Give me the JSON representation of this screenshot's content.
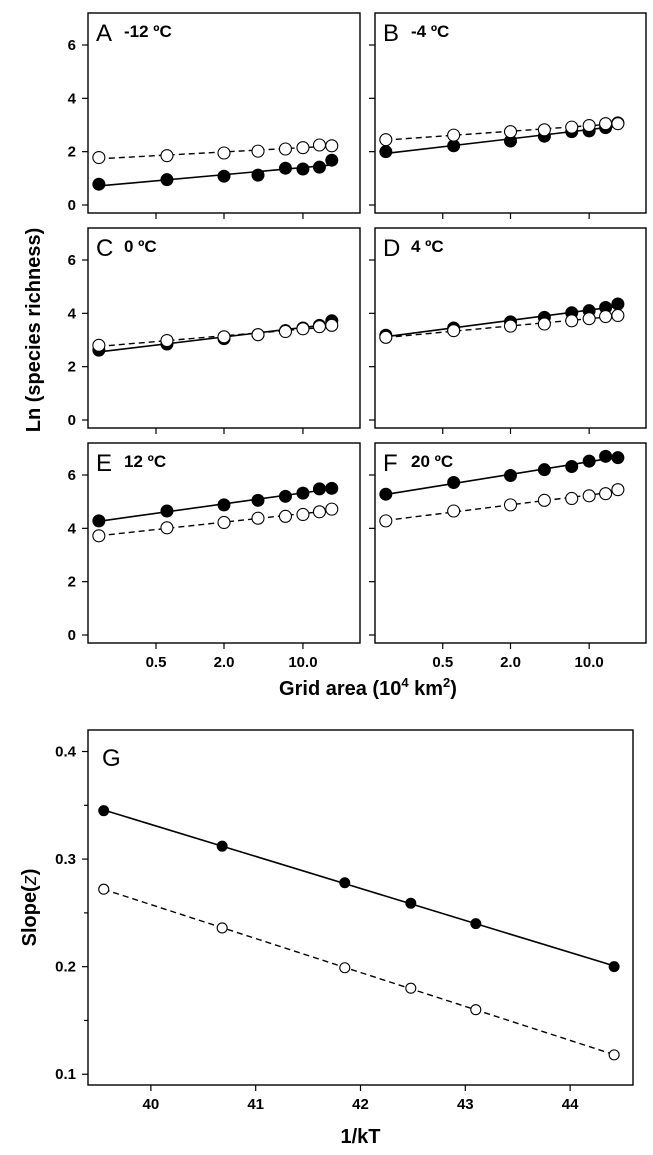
{
  "figure": {
    "ylabel_top": "Ln (species richness)",
    "xlabel_top": "Grid area (10",
    "xlabel_top_sup1": "4",
    "xlabel_top_mid": " km",
    "xlabel_top_sup2": "2",
    "xlabel_top_end": ")"
  },
  "chart_data": [
    {
      "type": "scatter",
      "panel": "A",
      "temp": "-12 ºC",
      "xscale": "log",
      "x_ticks": [
        "0.5",
        "2.0",
        "10.0"
      ],
      "x_tick_values": [
        0.5,
        2.0,
        10.0
      ],
      "y_ticks": [
        "0",
        "2",
        "4",
        "6"
      ],
      "ylim": [
        -0.3,
        7.2
      ],
      "xlim": [
        0.125,
        32
      ],
      "x": [
        0.156,
        0.625,
        2.0,
        4.0,
        7.0,
        10.0,
        14.0,
        18.0
      ],
      "series": [
        {
          "style": "filled",
          "values": [
            0.78,
            0.95,
            1.08,
            1.12,
            1.38,
            1.35,
            1.42,
            1.68
          ]
        },
        {
          "style": "open",
          "values": [
            1.78,
            1.85,
            1.95,
            2.02,
            2.1,
            2.15,
            2.25,
            2.22
          ]
        }
      ]
    },
    {
      "type": "scatter",
      "panel": "B",
      "temp": "-4 ºC",
      "xscale": "log",
      "x_ticks": [
        "0.5",
        "2.0",
        "10.0"
      ],
      "x_tick_values": [
        0.5,
        2.0,
        10.0
      ],
      "y_ticks": [
        "0",
        "2",
        "4",
        "6"
      ],
      "ylim": [
        -0.3,
        7.2
      ],
      "xlim": [
        0.125,
        32
      ],
      "x": [
        0.156,
        0.625,
        2.0,
        4.0,
        7.0,
        10.0,
        14.0,
        18.0
      ],
      "series": [
        {
          "style": "filled",
          "values": [
            2.0,
            2.22,
            2.4,
            2.58,
            2.75,
            2.78,
            2.9,
            3.08
          ]
        },
        {
          "style": "open",
          "values": [
            2.45,
            2.62,
            2.75,
            2.82,
            2.92,
            2.98,
            3.05,
            3.05
          ]
        }
      ]
    },
    {
      "type": "scatter",
      "panel": "C",
      "temp": "0 ºC",
      "xscale": "log",
      "x_ticks": [
        "0.5",
        "2.0",
        "10.0"
      ],
      "x_tick_values": [
        0.5,
        2.0,
        10.0
      ],
      "y_ticks": [
        "0",
        "2",
        "4",
        "6"
      ],
      "ylim": [
        -0.3,
        7.2
      ],
      "xlim": [
        0.125,
        32
      ],
      "x": [
        0.156,
        0.625,
        2.0,
        4.0,
        7.0,
        10.0,
        14.0,
        18.0
      ],
      "series": [
        {
          "style": "filled",
          "values": [
            2.62,
            2.85,
            3.05,
            3.2,
            3.35,
            3.45,
            3.55,
            3.72
          ]
        },
        {
          "style": "open",
          "values": [
            2.8,
            2.98,
            3.12,
            3.2,
            3.32,
            3.42,
            3.5,
            3.55
          ]
        }
      ]
    },
    {
      "type": "scatter",
      "panel": "D",
      "temp": "4 ºC",
      "xscale": "log",
      "x_ticks": [
        "0.5",
        "2.0",
        "10.0"
      ],
      "x_tick_values": [
        0.5,
        2.0,
        10.0
      ],
      "y_ticks": [
        "0",
        "2",
        "4",
        "6"
      ],
      "ylim": [
        -0.3,
        7.2
      ],
      "xlim": [
        0.125,
        32
      ],
      "x": [
        0.156,
        0.625,
        2.0,
        4.0,
        7.0,
        10.0,
        14.0,
        18.0
      ],
      "series": [
        {
          "style": "filled",
          "values": [
            3.18,
            3.45,
            3.68,
            3.85,
            4.02,
            4.1,
            4.22,
            4.35
          ]
        },
        {
          "style": "open",
          "values": [
            3.1,
            3.35,
            3.52,
            3.6,
            3.72,
            3.8,
            3.88,
            3.92
          ]
        }
      ]
    },
    {
      "type": "scatter",
      "panel": "E",
      "temp": "12 ºC",
      "xscale": "log",
      "x_ticks": [
        "0.5",
        "2.0",
        "10.0"
      ],
      "x_tick_values": [
        0.5,
        2.0,
        10.0
      ],
      "y_ticks": [
        "0",
        "2",
        "4",
        "6"
      ],
      "ylim": [
        -0.3,
        7.2
      ],
      "xlim": [
        0.125,
        32
      ],
      "x": [
        0.156,
        0.625,
        2.0,
        4.0,
        7.0,
        10.0,
        14.0,
        18.0
      ],
      "series": [
        {
          "style": "filled",
          "values": [
            4.28,
            4.65,
            4.88,
            5.05,
            5.2,
            5.32,
            5.48,
            5.5
          ]
        },
        {
          "style": "open",
          "values": [
            3.72,
            4.02,
            4.22,
            4.38,
            4.45,
            4.52,
            4.62,
            4.72
          ]
        }
      ]
    },
    {
      "type": "scatter",
      "panel": "F",
      "temp": "20 ºC",
      "xscale": "log",
      "x_ticks": [
        "0.5",
        "2.0",
        "10.0"
      ],
      "x_tick_values": [
        0.5,
        2.0,
        10.0
      ],
      "y_ticks": [
        "0",
        "2",
        "4",
        "6"
      ],
      "ylim": [
        -0.3,
        7.2
      ],
      "xlim": [
        0.125,
        32
      ],
      "x": [
        0.156,
        0.625,
        2.0,
        4.0,
        7.0,
        10.0,
        14.0,
        18.0
      ],
      "series": [
        {
          "style": "filled",
          "values": [
            5.28,
            5.72,
            5.98,
            6.2,
            6.32,
            6.52,
            6.7,
            6.65
          ]
        },
        {
          "style": "open",
          "values": [
            4.28,
            4.65,
            4.88,
            5.05,
            5.12,
            5.22,
            5.3,
            5.45
          ]
        }
      ]
    },
    {
      "type": "scatter",
      "panel": "G",
      "xlabel": "1/kT",
      "ylabel": "Slope(",
      "ylabel_italic": "z",
      "ylabel_end": ")",
      "x_ticks": [
        "40",
        "41",
        "42",
        "43",
        "44"
      ],
      "x_tick_values": [
        40,
        41,
        42,
        43,
        44
      ],
      "y_ticks": [
        "0.1",
        "0.2",
        "0.3",
        "0.4"
      ],
      "y_tick_values": [
        0.1,
        0.2,
        0.3,
        0.4
      ],
      "xlim": [
        39.4,
        44.6
      ],
      "ylim": [
        0.09,
        0.42
      ],
      "x": [
        39.55,
        40.68,
        41.85,
        42.48,
        43.1,
        44.42
      ],
      "series": [
        {
          "style": "filled",
          "values": [
            0.345,
            0.312,
            0.278,
            0.259,
            0.24,
            0.2
          ]
        },
        {
          "style": "open",
          "values": [
            0.272,
            0.236,
            0.199,
            0.18,
            0.16,
            0.118
          ]
        }
      ]
    }
  ]
}
